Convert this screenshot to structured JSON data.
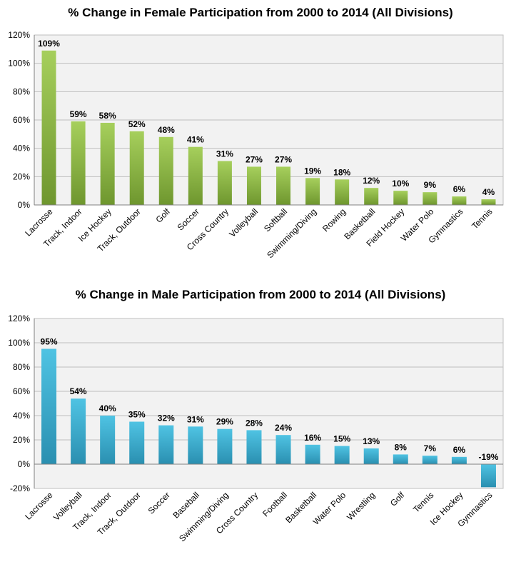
{
  "chart_data": [
    {
      "type": "bar",
      "title": "% Change in Female Participation from 2000 to 2014 (All Divisions)",
      "categories": [
        "Lacrosse",
        "Track, Indoor",
        "Ice Hockey",
        "Track, Outdoor",
        "Golf",
        "Soccer",
        "Cross Country",
        "Volleyball",
        "Softball",
        "Swimming/Diving",
        "Rowing",
        "Basketball",
        "Field Hockey",
        "Water Polo",
        "Gymnastics",
        "Tennis"
      ],
      "values": [
        109,
        59,
        58,
        52,
        48,
        41,
        31,
        27,
        27,
        19,
        18,
        12,
        10,
        9,
        6,
        4
      ],
      "value_labels": [
        "109%",
        "59%",
        "58%",
        "52%",
        "48%",
        "41%",
        "31%",
        "27%",
        "27%",
        "19%",
        "18%",
        "12%",
        "10%",
        "9%",
        "6%",
        "4%"
      ],
      "ylim": [
        0,
        120
      ],
      "yticks": [
        0,
        20,
        40,
        60,
        80,
        100,
        120
      ],
      "ytick_labels": [
        "0%",
        "20%",
        "40%",
        "60%",
        "80%",
        "100%",
        "120%"
      ],
      "grid": true,
      "bar_color_top": "#a6cf5c",
      "bar_color_bottom": "#6e962e"
    },
    {
      "type": "bar",
      "title": "% Change in Male Participation from 2000 to 2014 (All Divisions)",
      "categories": [
        "Lacrosse",
        "Volleyball",
        "Track, Indoor",
        "Track, Outdoor",
        "Soccer",
        "Baseball",
        "Swimming/Diving",
        "Cross Country",
        "Football",
        "Basketball",
        "Water Polo",
        "Wrestling",
        "Golf",
        "Tennis",
        "Ice Hockey",
        "Gymnastics"
      ],
      "values": [
        95,
        54,
        40,
        35,
        32,
        31,
        29,
        28,
        24,
        16,
        15,
        13,
        8,
        7,
        6,
        -19
      ],
      "value_labels": [
        "95%",
        "54%",
        "40%",
        "35%",
        "32%",
        "31%",
        "29%",
        "28%",
        "24%",
        "16%",
        "15%",
        "13%",
        "8%",
        "7%",
        "6%",
        "-19%"
      ],
      "ylim": [
        -20,
        120
      ],
      "yticks": [
        -20,
        0,
        20,
        40,
        60,
        80,
        100,
        120
      ],
      "ytick_labels": [
        "-20%",
        "0%",
        "20%",
        "40%",
        "60%",
        "80%",
        "100%",
        "120%"
      ],
      "grid": true,
      "bar_color_top": "#4fc3e3",
      "bar_color_bottom": "#2a8fb0"
    }
  ]
}
